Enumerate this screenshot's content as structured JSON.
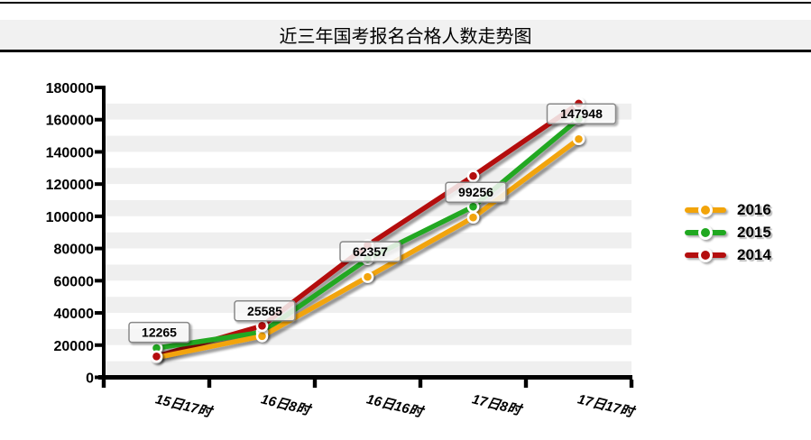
{
  "chart_data": {
    "type": "line",
    "title": "近三年国考报名合格人数走势图",
    "categories": [
      "15日17时",
      "16日8时",
      "16日16时",
      "17日8时",
      "17日17时"
    ],
    "xlabel": "",
    "ylabel": "",
    "ylim": [
      0,
      180000
    ],
    "y_ticks": [
      "0",
      "20000",
      "40000",
      "60000",
      "80000",
      "100000",
      "120000",
      "140000",
      "160000",
      "180000"
    ],
    "grid": "alternating-horizontal-bands",
    "legend_position": "right",
    "series": [
      {
        "name": "2016",
        "color": "#F2A40A",
        "values": [
          12265,
          25585,
          62357,
          99256,
          147948
        ],
        "data_labels": [
          "12265",
          "25585",
          "62357",
          "99256",
          "147948"
        ]
      },
      {
        "name": "2015",
        "color": "#20A820",
        "values": [
          18200,
          28000,
          73500,
          106000,
          160500
        ],
        "data_labels": []
      },
      {
        "name": "2014",
        "color": "#B40F0F",
        "values": [
          13000,
          32000,
          82000,
          125000,
          170000
        ],
        "data_labels": []
      }
    ],
    "colors": {
      "axis": "#000000",
      "band_light": "#ffffff",
      "band_dark": "#efefef",
      "title_band_bg": "#f1f1f1",
      "label_box_border": "#888888"
    }
  }
}
